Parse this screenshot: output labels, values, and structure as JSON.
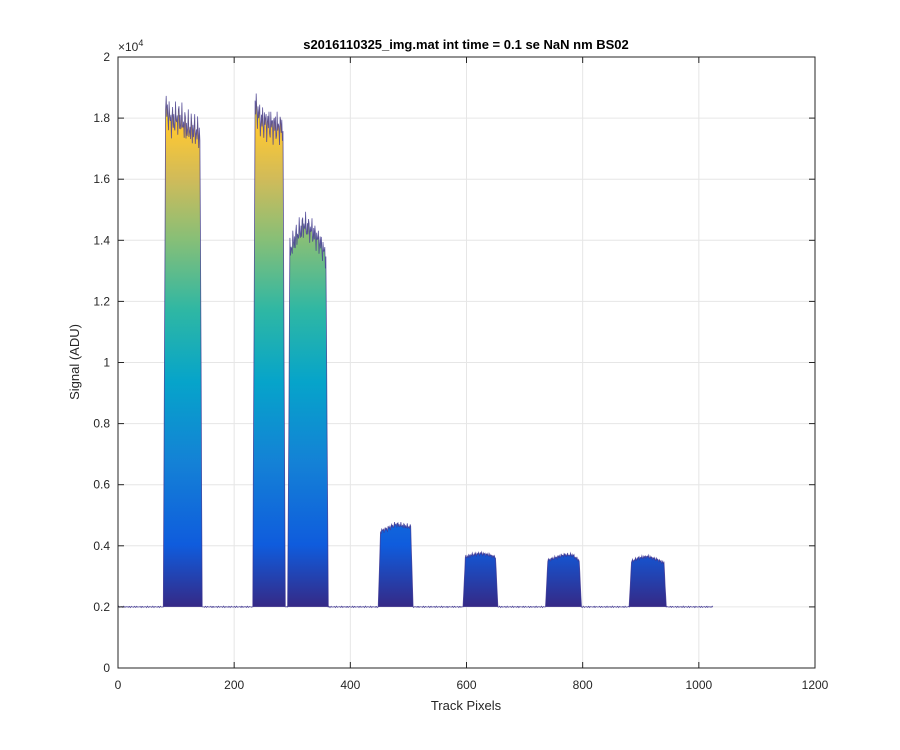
{
  "chart_data": {
    "type": "area",
    "title": "s2016110325_img.mat int time = 0.1 se  NaN nm BS02",
    "xlabel": "Track Pixels",
    "ylabel": "Signal (ADU)",
    "y_exponent_label": "×10",
    "y_exponent_power": "4",
    "xlim": [
      0,
      1200
    ],
    "ylim": [
      0,
      20000
    ],
    "xticks": [
      0,
      200,
      400,
      600,
      800,
      1000,
      1200
    ],
    "xtick_labels": [
      "0",
      "200",
      "400",
      "600",
      "800",
      "1000",
      "1200"
    ],
    "yticks": [
      0,
      2000,
      4000,
      6000,
      8000,
      10000,
      12000,
      14000,
      16000,
      18000,
      20000
    ],
    "ytick_labels": [
      "0",
      "0.2",
      "0.4",
      "0.6",
      "0.8",
      "1",
      "1.2",
      "1.4",
      "1.6",
      "1.8",
      "2"
    ],
    "grid": true,
    "colormap": [
      "#352a87",
      "#0f5cdd",
      "#1481d6",
      "#06a4ca",
      "#2eb7a4",
      "#87bf77",
      "#d1bb59",
      "#fec832",
      "#f9fb0e"
    ],
    "baseline": 2000,
    "x_extent": [
      0,
      1024
    ],
    "peaks": [
      {
        "x_start": 78,
        "x_end": 145,
        "values": [
          18500,
          17900,
          18000,
          17700,
          17600,
          17400
        ]
      },
      {
        "x_start": 232,
        "x_end": 288,
        "values": [
          18600,
          17900,
          17800,
          17700,
          17700
        ]
      },
      {
        "x_start": 292,
        "x_end": 362,
        "values": [
          13500,
          14100,
          14500,
          14300,
          13900,
          13300
        ]
      },
      {
        "x_start": 448,
        "x_end": 508,
        "values": [
          4450,
          4550,
          4700,
          4650,
          4600
        ]
      },
      {
        "x_start": 594,
        "x_end": 654,
        "values": [
          3600,
          3700,
          3750,
          3700,
          3600
        ]
      },
      {
        "x_start": 736,
        "x_end": 798,
        "values": [
          3500,
          3600,
          3700,
          3700,
          3450
        ]
      },
      {
        "x_start": 880,
        "x_end": 944,
        "values": [
          3450,
          3600,
          3650,
          3550,
          3400
        ]
      }
    ]
  }
}
